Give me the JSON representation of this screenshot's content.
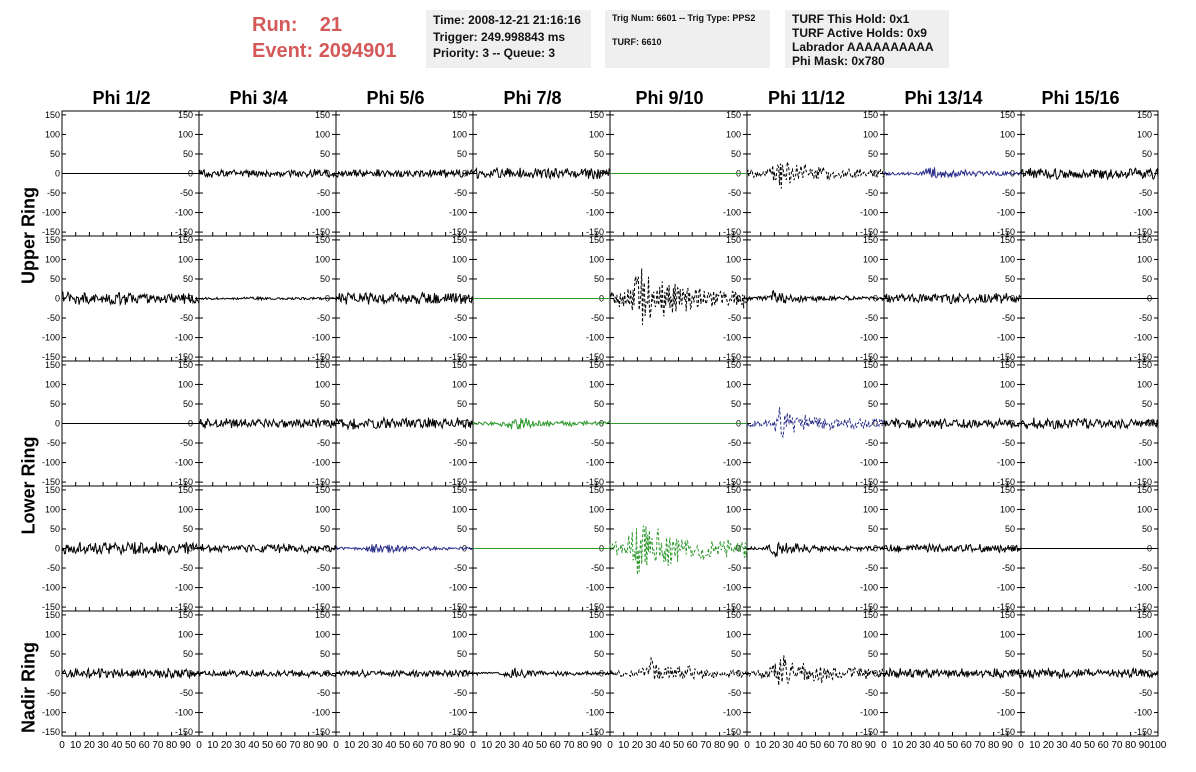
{
  "header": {
    "run_label": "Run:",
    "run_value": "21",
    "event_label": "Event:",
    "event_value": "2094901"
  },
  "info_boxes": [
    {
      "lines": [
        "Time: 2008-12-21 21:16:16",
        "Trigger: 249.998843 ms",
        "Priority: 3 -- Queue: 3"
      ]
    },
    {
      "lines": [
        "Trig Num: 6601 -- Trig Type: PPS2",
        "",
        "TURF: 6610"
      ]
    },
    {
      "lines": [
        "TURF This Hold: 0x1",
        "TURF Active Holds: 0x9",
        "Labrador AAAAAAAAAA",
        "Phi Mask: 0x780"
      ]
    }
  ],
  "colors": {
    "black": "#000000",
    "green": "#2e9a2e",
    "blue": "#2b2f8a",
    "run_text": "#d45a5a"
  },
  "chart_data": {
    "type": "line",
    "columns": [
      "Phi 1/2",
      "Phi 3/4",
      "Phi 5/6",
      "Phi 7/8",
      "Phi 9/10",
      "Phi 11/12",
      "Phi 13/14",
      "Phi 15/16"
    ],
    "rows": [
      "Upper Ring",
      "Lower Ring",
      "Nadir Ring"
    ],
    "y_ticks": [
      150,
      100,
      50,
      0,
      -50,
      -100,
      -150
    ],
    "x_ticks": [
      0,
      10,
      20,
      30,
      40,
      50,
      60,
      70,
      80,
      90,
      100
    ],
    "ylim": [
      -160,
      160
    ],
    "xlim": [
      0,
      100
    ],
    "panels": [
      {
        "row": 0,
        "col": 0,
        "amp": 0,
        "color": "black",
        "dashed": false
      },
      {
        "row": 0,
        "col": 1,
        "amp": 12,
        "color": "black",
        "dashed": false
      },
      {
        "row": 0,
        "col": 2,
        "amp": 12,
        "color": "black",
        "dashed": false
      },
      {
        "row": 0,
        "col": 3,
        "amp": 16,
        "color": "black",
        "dashed": false
      },
      {
        "row": 0,
        "col": 4,
        "amp": 0,
        "color": "green",
        "dashed": false
      },
      {
        "row": 0,
        "col": 5,
        "amp": 45,
        "color": "black",
        "dashed": true,
        "pulse": 25
      },
      {
        "row": 0,
        "col": 6,
        "amp": 20,
        "color": "blue",
        "dashed": false,
        "pulse": 35
      },
      {
        "row": 0,
        "col": 7,
        "amp": 16,
        "color": "black",
        "dashed": false
      },
      {
        "row": 1,
        "col": 0,
        "amp": 18,
        "color": "black",
        "dashed": false
      },
      {
        "row": 1,
        "col": 1,
        "amp": 4,
        "color": "black",
        "dashed": false
      },
      {
        "row": 1,
        "col": 2,
        "amp": 18,
        "color": "black",
        "dashed": false
      },
      {
        "row": 1,
        "col": 3,
        "amp": 0,
        "color": "green",
        "dashed": false
      },
      {
        "row": 1,
        "col": 4,
        "amp": 95,
        "color": "black",
        "dashed": true,
        "pulse": 22
      },
      {
        "row": 1,
        "col": 5,
        "amp": 22,
        "color": "black",
        "dashed": false,
        "pulse": 20
      },
      {
        "row": 1,
        "col": 6,
        "amp": 15,
        "color": "black",
        "dashed": false
      },
      {
        "row": 1,
        "col": 7,
        "amp": 0,
        "color": "black",
        "dashed": false
      },
      {
        "row": 2,
        "col": 0,
        "amp": 0,
        "color": "black",
        "dashed": false
      },
      {
        "row": 2,
        "col": 1,
        "amp": 14,
        "color": "black",
        "dashed": false
      },
      {
        "row": 2,
        "col": 2,
        "amp": 16,
        "color": "black",
        "dashed": false
      },
      {
        "row": 2,
        "col": 3,
        "amp": 22,
        "color": "green",
        "dashed": false,
        "pulse": 30
      },
      {
        "row": 2,
        "col": 4,
        "amp": 0,
        "color": "green",
        "dashed": false
      },
      {
        "row": 2,
        "col": 5,
        "amp": 50,
        "color": "blue",
        "dashed": true,
        "pulse": 25
      },
      {
        "row": 2,
        "col": 6,
        "amp": 15,
        "color": "black",
        "dashed": false
      },
      {
        "row": 2,
        "col": 7,
        "amp": 15,
        "color": "black",
        "dashed": false
      },
      {
        "row": 3,
        "col": 0,
        "amp": 18,
        "color": "black",
        "dashed": false
      },
      {
        "row": 3,
        "col": 1,
        "amp": 12,
        "color": "black",
        "dashed": false
      },
      {
        "row": 3,
        "col": 2,
        "amp": 16,
        "color": "blue",
        "dashed": false,
        "pulse": 30
      },
      {
        "row": 3,
        "col": 3,
        "amp": 0,
        "color": "green",
        "dashed": false
      },
      {
        "row": 3,
        "col": 4,
        "amp": 95,
        "color": "green",
        "dashed": true,
        "pulse": 20
      },
      {
        "row": 3,
        "col": 5,
        "amp": 22,
        "color": "black",
        "dashed": false,
        "pulse": 22
      },
      {
        "row": 3,
        "col": 6,
        "amp": 12,
        "color": "black",
        "dashed": false
      },
      {
        "row": 3,
        "col": 7,
        "amp": 0,
        "color": "black",
        "dashed": false
      },
      {
        "row": 4,
        "col": 0,
        "amp": 15,
        "color": "black",
        "dashed": false
      },
      {
        "row": 4,
        "col": 1,
        "amp": 10,
        "color": "black",
        "dashed": false
      },
      {
        "row": 4,
        "col": 2,
        "amp": 10,
        "color": "black",
        "dashed": false
      },
      {
        "row": 4,
        "col": 3,
        "amp": 18,
        "color": "black",
        "dashed": false,
        "pulse": 30
      },
      {
        "row": 4,
        "col": 4,
        "amp": 45,
        "color": "black",
        "dashed": true,
        "pulse": 30
      },
      {
        "row": 4,
        "col": 5,
        "amp": 55,
        "color": "black",
        "dashed": true,
        "pulse": 25
      },
      {
        "row": 4,
        "col": 6,
        "amp": 14,
        "color": "black",
        "dashed": false
      },
      {
        "row": 4,
        "col": 7,
        "amp": 14,
        "color": "black",
        "dashed": false
      }
    ]
  }
}
